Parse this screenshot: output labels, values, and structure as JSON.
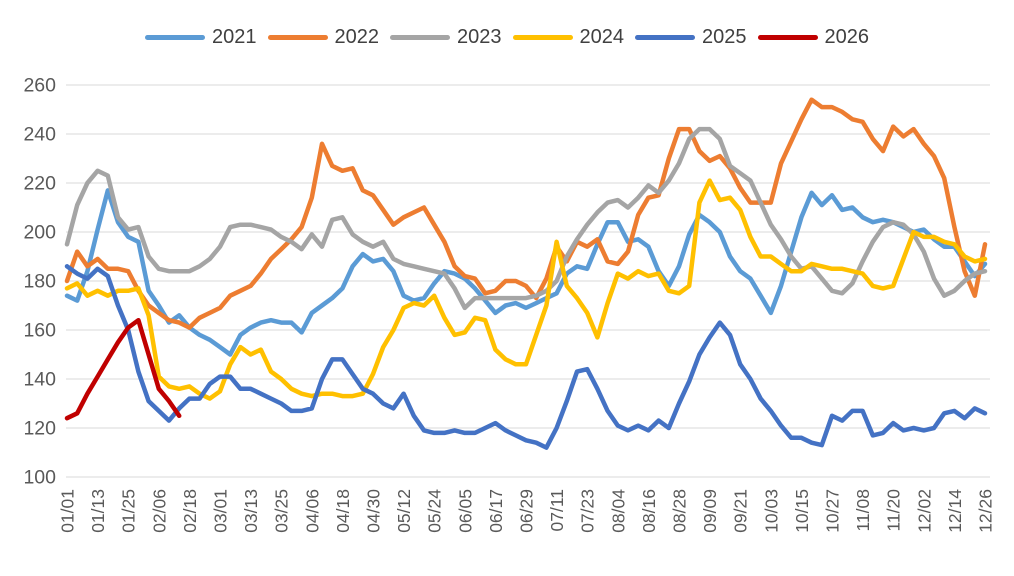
{
  "chart_data": {
    "type": "line",
    "title": "",
    "xlabel": "",
    "ylabel": "",
    "legend_position": "top",
    "grid": "horizontal",
    "background_color": "#FFFFFF",
    "gridline_color": "#D9D9D9",
    "axis_label_color": "#595959",
    "legend_text_color": "#404040",
    "ylim": [
      100,
      260
    ],
    "y_tick_step": 20,
    "y_tick_labels": [
      "100",
      "120",
      "140",
      "160",
      "180",
      "200",
      "220",
      "240",
      "260"
    ],
    "x_tick_interval_days": 12,
    "x_tick_labels": [
      "01/01",
      "01/13",
      "01/25",
      "02/06",
      "02/18",
      "03/01",
      "03/13",
      "03/25",
      "04/06",
      "04/18",
      "04/30",
      "05/12",
      "05/24",
      "06/05",
      "06/17",
      "06/29",
      "07/11",
      "07/23",
      "08/04",
      "08/16",
      "08/28",
      "09/09",
      "09/21",
      "10/03",
      "10/15",
      "10/27",
      "11/08",
      "11/20",
      "12/02",
      "12/14",
      "12/26"
    ],
    "sample_interval_days": 4,
    "series": [
      {
        "name": "2021",
        "color": "#5B9BD5",
        "start_day": 0,
        "step_days": 4,
        "values": [
          174,
          172,
          184,
          201,
          217,
          204,
          198,
          196,
          176,
          170,
          163,
          166,
          161,
          158,
          156,
          153,
          150,
          158,
          161,
          163,
          164,
          163,
          163,
          159,
          167,
          170,
          173,
          177,
          186,
          191,
          188,
          189,
          184,
          174,
          172,
          173,
          179,
          184,
          183,
          181,
          177,
          172,
          167,
          170,
          171,
          169,
          171,
          173,
          175,
          183,
          186,
          185,
          195,
          204,
          204,
          196,
          197,
          194,
          184,
          178,
          186,
          199,
          207,
          204,
          200,
          190,
          184,
          181,
          174,
          167,
          178,
          192,
          206,
          216,
          211,
          215,
          209,
          210,
          206,
          204,
          205,
          204,
          202,
          200,
          201,
          197,
          194,
          194,
          188,
          182,
          187
        ]
      },
      {
        "name": "2022",
        "color": "#ED7D31",
        "start_day": 0,
        "step_days": 4,
        "values": [
          180,
          192,
          186,
          189,
          185,
          185,
          184,
          176,
          170,
          167,
          164,
          163,
          161,
          165,
          167,
          169,
          174,
          176,
          178,
          183,
          189,
          193,
          197,
          202,
          214,
          236,
          227,
          225,
          226,
          217,
          215,
          209,
          203,
          206,
          208,
          210,
          203,
          196,
          186,
          182,
          181,
          175,
          176,
          180,
          180,
          178,
          173,
          181,
          194,
          188,
          196,
          194,
          197,
          188,
          187,
          192,
          207,
          214,
          215,
          230,
          242,
          242,
          233,
          229,
          231,
          226,
          218,
          212,
          212,
          212,
          228,
          237,
          246,
          254,
          251,
          251,
          249,
          246,
          245,
          238,
          233,
          243,
          239,
          242,
          236,
          231,
          222,
          202,
          184,
          174,
          195
        ]
      },
      {
        "name": "2023",
        "color": "#A5A5A5",
        "start_day": 0,
        "step_days": 4,
        "values": [
          195,
          211,
          220,
          225,
          223,
          206,
          201,
          202,
          190,
          185,
          184,
          184,
          184,
          186,
          189,
          194,
          202,
          203,
          203,
          202,
          201,
          198,
          196,
          193,
          199,
          194,
          205,
          206,
          199,
          196,
          194,
          196,
          189,
          187,
          186,
          185,
          184,
          183,
          177,
          169,
          173,
          173,
          173,
          173,
          173,
          173,
          174,
          176,
          180,
          190,
          197,
          203,
          208,
          212,
          213,
          210,
          214,
          219,
          216,
          221,
          228,
          238,
          242,
          242,
          238,
          227,
          224,
          221,
          212,
          203,
          197,
          190,
          185,
          186,
          181,
          176,
          175,
          179,
          188,
          196,
          202,
          204,
          203,
          199,
          192,
          181,
          174,
          176,
          180,
          183,
          184
        ]
      },
      {
        "name": "2024",
        "color": "#FFC000",
        "start_day": 0,
        "step_days": 4,
        "values": [
          177,
          179,
          174,
          176,
          174,
          176,
          176,
          177,
          166,
          141,
          137,
          136,
          137,
          134,
          132,
          135,
          146,
          153,
          150,
          152,
          143,
          140,
          136,
          134,
          133,
          134,
          134,
          133,
          133,
          134,
          142,
          153,
          160,
          169,
          171,
          170,
          174,
          165,
          158,
          159,
          165,
          164,
          152,
          148,
          146,
          146,
          158,
          170,
          196,
          178,
          173,
          167,
          157,
          171,
          183,
          181,
          184,
          182,
          183,
          176,
          175,
          178,
          212,
          221,
          213,
          214,
          209,
          198,
          190,
          190,
          187,
          184,
          184,
          187,
          186,
          185,
          185,
          184,
          183,
          178,
          177,
          178,
          189,
          200,
          198,
          198,
          196,
          195,
          190,
          188,
          189
        ]
      },
      {
        "name": "2025",
        "color": "#4472C4",
        "start_day": 0,
        "step_days": 4,
        "values": [
          186,
          183,
          181,
          185,
          182,
          170,
          160,
          143,
          131,
          127,
          123,
          128,
          132,
          132,
          138,
          141,
          141,
          136,
          136,
          134,
          132,
          130,
          127,
          127,
          128,
          140,
          148,
          148,
          142,
          136,
          134,
          130,
          128,
          134,
          125,
          119,
          118,
          118,
          119,
          118,
          118,
          120,
          122,
          119,
          117,
          115,
          114,
          112,
          120,
          131,
          143,
          144,
          136,
          127,
          121,
          119,
          121,
          119,
          123,
          120,
          130,
          139,
          150,
          157,
          163,
          158,
          146,
          140,
          132,
          127,
          121,
          116,
          116,
          114,
          113,
          125,
          123,
          127,
          127,
          117,
          118,
          122,
          119,
          120,
          119,
          120,
          126,
          127,
          124,
          128,
          126
        ]
      },
      {
        "name": "2026",
        "color": "#C00000",
        "start_day": 0,
        "step_days": 4,
        "values": [
          124,
          126,
          134,
          141,
          148,
          155,
          161,
          164,
          150,
          136,
          131,
          125
        ]
      }
    ]
  }
}
